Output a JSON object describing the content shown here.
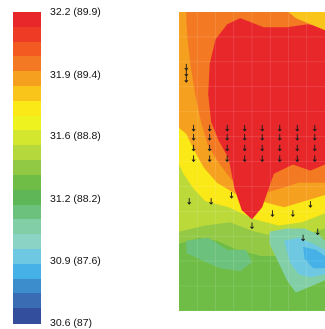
{
  "chart_data": {
    "type": "heatmap",
    "colorbar": {
      "colors": [
        "#e8272b",
        "#ee3b26",
        "#f25a22",
        "#f37a22",
        "#f6a01f",
        "#f9c51b",
        "#fae817",
        "#eef21e",
        "#d3e72e",
        "#b5d83c",
        "#91c944",
        "#6fbd47",
        "#5fb656",
        "#6cc27d",
        "#82cfa7",
        "#8ad3c5",
        "#6fc8e1",
        "#45b1e6",
        "#3b8dcc",
        "#3a6cb3",
        "#334e9c"
      ],
      "tick_labels": [
        "32.2 (89.9)",
        "31.9 (89.4)",
        "31.6 (88.8)",
        "31.2 (88.2)",
        "30.9 (87.6)",
        "30.6 (87)"
      ],
      "ticks": [
        32.2,
        31.9,
        31.6,
        31.2,
        30.9,
        30.6
      ],
      "range": [
        30.6,
        32.2
      ]
    },
    "contour_levels": [
      {
        "level": 1,
        "color": "#ffffff",
        "outline": [
          [
            0,
            0
          ],
          [
            1,
            0
          ],
          [
            1,
            1
          ],
          [
            0,
            1
          ]
        ]
      },
      {
        "level": 2,
        "color": "#93c945",
        "outline": [
          [
            0,
            0
          ],
          [
            1,
            0
          ],
          [
            1,
            0.98
          ],
          [
            0,
            0.98
          ]
        ]
      },
      {
        "level": 3,
        "color": "#bcd93a",
        "outline": [
          [
            0,
            0
          ],
          [
            1,
            0
          ],
          [
            1,
            0.71
          ],
          [
            0.86,
            0.73
          ],
          [
            0.7,
            0.74
          ],
          [
            0.52,
            0.72
          ],
          [
            0.35,
            0.69
          ],
          [
            0.18,
            0.7
          ],
          [
            0,
            0.72
          ]
        ]
      },
      {
        "level": 4,
        "color": "#fae817",
        "outline": [
          [
            0,
            0
          ],
          [
            1,
            0
          ],
          [
            1,
            0.66
          ],
          [
            0.84,
            0.69
          ],
          [
            0.68,
            0.7
          ],
          [
            0.52,
            0.68
          ],
          [
            0.34,
            0.64
          ],
          [
            0.18,
            0.62
          ],
          [
            0.1,
            0.58
          ],
          [
            0.03,
            0.53
          ],
          [
            0,
            0.5
          ]
        ]
      },
      {
        "level": 5,
        "color": "#f6a01f",
        "outline": [
          [
            0,
            0
          ],
          [
            1,
            0
          ],
          [
            1,
            0.6
          ],
          [
            0.86,
            0.62
          ],
          [
            0.72,
            0.64
          ],
          [
            0.56,
            0.62
          ],
          [
            0.4,
            0.6
          ],
          [
            0.26,
            0.56
          ],
          [
            0.17,
            0.51
          ],
          [
            0.1,
            0.45
          ],
          [
            0.05,
            0.4
          ],
          [
            0,
            0.38
          ]
        ]
      },
      {
        "level": 6,
        "color": "#f37a22",
        "outline": [
          [
            0,
            0
          ],
          [
            1,
            0
          ],
          [
            1,
            0.56
          ],
          [
            0.82,
            0.56
          ],
          [
            0.62,
            0.59
          ],
          [
            0.48,
            0.58
          ],
          [
            0.36,
            0.55
          ],
          [
            0.28,
            0.5
          ],
          [
            0.2,
            0.44
          ],
          [
            0.15,
            0.36
          ],
          [
            0.11,
            0.27
          ],
          [
            0.08,
            0.18
          ],
          [
            0.06,
            0.1
          ],
          [
            0.05,
            0.03
          ],
          [
            0.05,
            0
          ]
        ]
      },
      {
        "level": 7,
        "color": "#e8272b",
        "outline": [
          [
            0.42,
            0.02
          ],
          [
            0.58,
            0.05
          ],
          [
            0.74,
            0.05
          ],
          [
            0.88,
            0.04
          ],
          [
            1,
            0.05
          ],
          [
            1,
            0.5
          ],
          [
            0.9,
            0.52
          ],
          [
            0.78,
            0.5
          ],
          [
            0.65,
            0.53
          ],
          [
            0.57,
            0.64
          ],
          [
            0.5,
            0.68
          ],
          [
            0.43,
            0.65
          ],
          [
            0.38,
            0.58
          ],
          [
            0.34,
            0.48
          ],
          [
            0.27,
            0.42
          ],
          [
            0.22,
            0.36
          ],
          [
            0.2,
            0.27
          ],
          [
            0.21,
            0.17
          ],
          [
            0.25,
            0.09
          ],
          [
            0.33,
            0.04
          ]
        ]
      }
    ],
    "zones": [
      {
        "color": "#6fbd47",
        "outline": [
          [
            0,
            0.76
          ],
          [
            0.14,
            0.74
          ],
          [
            0.26,
            0.75
          ],
          [
            0.4,
            0.78
          ],
          [
            0.56,
            0.8
          ],
          [
            0.7,
            0.8
          ],
          [
            0.84,
            0.79
          ],
          [
            1,
            0.77
          ],
          [
            1,
            0.98
          ],
          [
            0,
            0.98
          ]
        ]
      },
      {
        "color": "#6cc27d",
        "outline": [
          [
            0.05,
            0.75
          ],
          [
            0.2,
            0.74
          ],
          [
            0.33,
            0.78
          ],
          [
            0.46,
            0.78
          ],
          [
            0.5,
            0.82
          ],
          [
            0.42,
            0.85
          ],
          [
            0.28,
            0.84
          ],
          [
            0.14,
            0.81
          ],
          [
            0.05,
            0.79
          ]
        ]
      },
      {
        "color": "#82cfa7",
        "outline": [
          [
            0.62,
            0.72
          ],
          [
            0.74,
            0.71
          ],
          [
            0.86,
            0.71
          ],
          [
            0.96,
            0.73
          ],
          [
            1,
            0.75
          ],
          [
            1,
            0.88
          ],
          [
            0.9,
            0.9
          ],
          [
            0.8,
            0.92
          ],
          [
            0.74,
            0.88
          ],
          [
            0.68,
            0.82
          ],
          [
            0.62,
            0.76
          ]
        ]
      },
      {
        "color": "#6fc8e1",
        "outline": [
          [
            0.72,
            0.75
          ],
          [
            0.82,
            0.74
          ],
          [
            0.92,
            0.76
          ],
          [
            1,
            0.78
          ],
          [
            1,
            0.86
          ],
          [
            0.9,
            0.87
          ],
          [
            0.82,
            0.86
          ],
          [
            0.76,
            0.82
          ]
        ]
      },
      {
        "color": "#45b1e6",
        "outline": [
          [
            0.85,
            0.77
          ],
          [
            0.94,
            0.78
          ],
          [
            1,
            0.8
          ],
          [
            1,
            0.84
          ],
          [
            0.92,
            0.84
          ],
          [
            0.86,
            0.81
          ]
        ]
      },
      {
        "color": "#f9c51b",
        "outline": [
          [
            0.75,
            0
          ],
          [
            1,
            0
          ],
          [
            1,
            0.06
          ],
          [
            0.9,
            0.04
          ],
          [
            0.8,
            0.02
          ]
        ]
      }
    ],
    "vectors": {
      "rows": [
        0.38,
        0.41,
        0.445,
        0.48
      ],
      "cols": [
        0.1,
        0.21,
        0.33,
        0.45,
        0.57,
        0.69,
        0.81,
        0.93
      ],
      "extra": [
        [
          0.05,
          0.18
        ],
        [
          0.05,
          0.2
        ],
        [
          0.05,
          0.22
        ],
        [
          0.07,
          0.62
        ],
        [
          0.22,
          0.62
        ],
        [
          0.36,
          0.6
        ],
        [
          0.5,
          0.7
        ],
        [
          0.64,
          0.66
        ],
        [
          0.78,
          0.66
        ],
        [
          0.9,
          0.63
        ],
        [
          0.95,
          0.72
        ],
        [
          0.85,
          0.74
        ]
      ]
    }
  }
}
